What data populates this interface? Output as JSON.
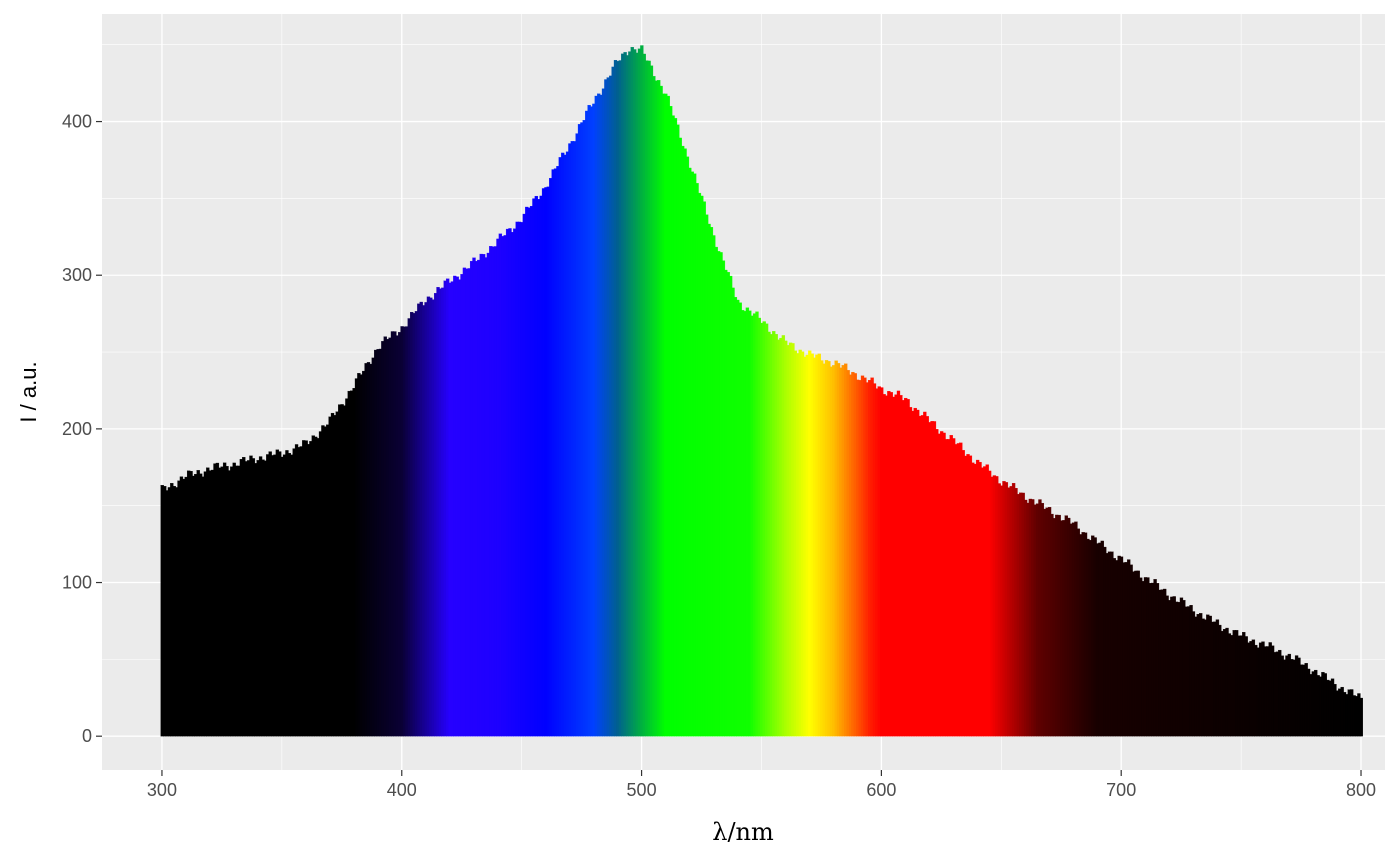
{
  "chart_data": {
    "type": "bar",
    "xlabel": "λ/nm",
    "ylabel": "I / a.u.",
    "xlim": [
      275,
      810
    ],
    "ylim": [
      -22,
      470
    ],
    "x_ticks": [
      300,
      400,
      500,
      600,
      700,
      800
    ],
    "y_ticks": [
      0,
      100,
      200,
      300,
      400
    ],
    "grid": true,
    "panel_background": "#EBEBEB",
    "grid_color": "#FFFFFF",
    "bin_width_nm": 1,
    "x_range": [
      300,
      800
    ],
    "envelope": {
      "x": [
        300,
        310,
        320,
        330,
        340,
        350,
        360,
        370,
        380,
        390,
        400,
        410,
        420,
        430,
        440,
        450,
        460,
        470,
        480,
        490,
        495,
        500,
        510,
        520,
        530,
        540,
        550,
        560,
        570,
        580,
        590,
        600,
        610,
        620,
        630,
        640,
        650,
        660,
        670,
        680,
        690,
        700,
        710,
        720,
        730,
        740,
        750,
        760,
        770,
        780,
        790,
        800
      ],
      "y": [
        160,
        169,
        174,
        177,
        181,
        184,
        190,
        205,
        228,
        253,
        266,
        284,
        296,
        308,
        322,
        337,
        358,
        385,
        413,
        439,
        448,
        446,
        418,
        373,
        326,
        283,
        270,
        256,
        248,
        243,
        235,
        226,
        219,
        205,
        192,
        178,
        166,
        156,
        147,
        138,
        126,
        115,
        103,
        92,
        82,
        73,
        65,
        59,
        52,
        43,
        33,
        24
      ]
    },
    "color_stops": [
      {
        "nm": 300,
        "color": "#000000"
      },
      {
        "nm": 380,
        "color": "#000000"
      },
      {
        "nm": 400,
        "color": "#0A0035"
      },
      {
        "nm": 420,
        "color": "#2600FF"
      },
      {
        "nm": 440,
        "color": "#1E00FF"
      },
      {
        "nm": 460,
        "color": "#0000FF"
      },
      {
        "nm": 480,
        "color": "#0040FF"
      },
      {
        "nm": 490,
        "color": "#006090"
      },
      {
        "nm": 500,
        "color": "#00B040"
      },
      {
        "nm": 510,
        "color": "#00FF00"
      },
      {
        "nm": 545,
        "color": "#10FF00"
      },
      {
        "nm": 560,
        "color": "#AAFF00"
      },
      {
        "nm": 570,
        "color": "#FFFF00"
      },
      {
        "nm": 580,
        "color": "#FFBF00"
      },
      {
        "nm": 595,
        "color": "#FF2000"
      },
      {
        "nm": 600,
        "color": "#FF0000"
      },
      {
        "nm": 645,
        "color": "#FF0000"
      },
      {
        "nm": 665,
        "color": "#600000"
      },
      {
        "nm": 690,
        "color": "#180000"
      },
      {
        "nm": 800,
        "color": "#000000"
      }
    ]
  }
}
